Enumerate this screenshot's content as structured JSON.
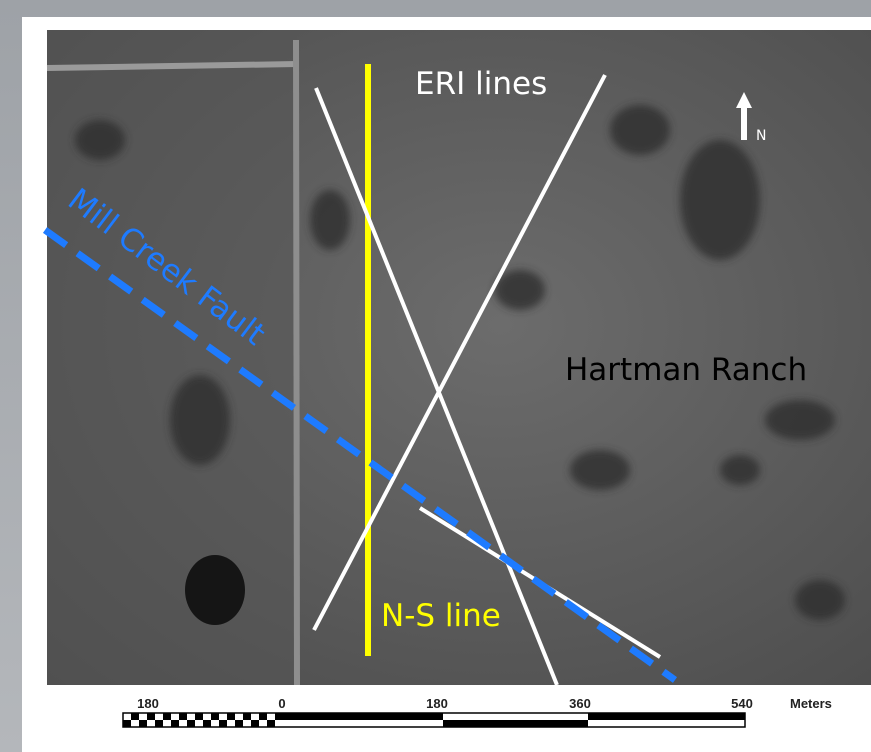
{
  "map": {
    "labels": {
      "eri_lines": "ERI lines",
      "north": "N",
      "fault": "Mill Creek Fault",
      "ranch": "Hartman Ranch",
      "ns_line": "N-S line"
    },
    "scale_bar": {
      "labels": [
        "180",
        "0",
        "180",
        "360",
        "540"
      ],
      "unit": "Meters"
    }
  }
}
